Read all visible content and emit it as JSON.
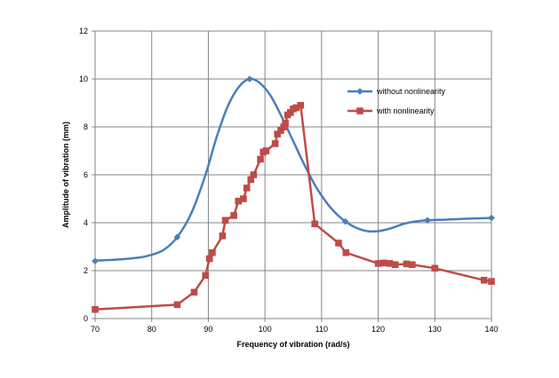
{
  "chart_data": {
    "type": "line",
    "xlabel": "Frequency of vibration (rad/s)",
    "ylabel": "Amplitude of vibration (mm)",
    "xlim": [
      70,
      140
    ],
    "ylim": [
      0,
      12
    ],
    "x_ticks": [
      "70",
      "80",
      "90",
      "100",
      "110",
      "120",
      "130",
      "140"
    ],
    "y_ticks": [
      "0",
      "2",
      "4",
      "6",
      "8",
      "10",
      "12"
    ],
    "grid": true,
    "legend_position": "top-right",
    "series": [
      {
        "name": "without nonlinearity",
        "color": "#4A7EBB",
        "marker": "diamond",
        "smooth": true,
        "points": [
          [
            70,
            2.4
          ],
          [
            84.5,
            3.4
          ],
          [
            97.3,
            10.0
          ],
          [
            114.2,
            4.05
          ],
          [
            128.7,
            4.1
          ],
          [
            140,
            4.2
          ]
        ],
        "curve": [
          [
            70,
            2.42
          ],
          [
            73,
            2.45
          ],
          [
            76,
            2.5
          ],
          [
            79,
            2.6
          ],
          [
            82,
            2.85
          ],
          [
            84.5,
            3.4
          ],
          [
            87,
            4.4
          ],
          [
            89.5,
            6.0
          ],
          [
            91.5,
            7.6
          ],
          [
            93.5,
            8.9
          ],
          [
            95.5,
            9.7
          ],
          [
            97.3,
            10.0
          ],
          [
            99,
            9.85
          ],
          [
            101,
            9.3
          ],
          [
            103,
            8.4
          ],
          [
            105,
            7.4
          ],
          [
            107,
            6.4
          ],
          [
            109,
            5.5
          ],
          [
            111,
            4.8
          ],
          [
            112.5,
            4.4
          ],
          [
            114.2,
            4.05
          ],
          [
            116,
            3.8
          ],
          [
            118,
            3.65
          ],
          [
            120,
            3.65
          ],
          [
            122,
            3.75
          ],
          [
            124.5,
            3.95
          ],
          [
            126.5,
            4.05
          ],
          [
            128.7,
            4.1
          ],
          [
            132,
            4.13
          ],
          [
            136,
            4.17
          ],
          [
            140,
            4.2
          ]
        ]
      },
      {
        "name": "with nonlinearity",
        "color": "#BE4B48",
        "marker": "square",
        "smooth": false,
        "points": [
          [
            70,
            0.38
          ],
          [
            84.5,
            0.58
          ],
          [
            87.5,
            1.1
          ],
          [
            89.5,
            1.8
          ],
          [
            90.2,
            2.5
          ],
          [
            90.7,
            2.75
          ],
          [
            92.5,
            3.45
          ],
          [
            93,
            4.1
          ],
          [
            94.5,
            4.3
          ],
          [
            95.3,
            4.9
          ],
          [
            96.2,
            5.0
          ],
          [
            96.8,
            5.45
          ],
          [
            97.5,
            5.8
          ],
          [
            98,
            6.0
          ],
          [
            99.2,
            6.65
          ],
          [
            99.7,
            6.95
          ],
          [
            100.2,
            7.0
          ],
          [
            101.8,
            7.3
          ],
          [
            102.2,
            7.7
          ],
          [
            102.8,
            7.85
          ],
          [
            103.3,
            8.0
          ],
          [
            103.6,
            8.15
          ],
          [
            104,
            8.5
          ],
          [
            104.5,
            8.6
          ],
          [
            105,
            8.75
          ],
          [
            105.5,
            8.8
          ],
          [
            106.3,
            8.9
          ],
          [
            108.8,
            3.95
          ],
          [
            113,
            3.15
          ],
          [
            114.3,
            2.75
          ],
          [
            120,
            2.3
          ],
          [
            121,
            2.32
          ],
          [
            122,
            2.3
          ],
          [
            123,
            2.25
          ],
          [
            125,
            2.28
          ],
          [
            126,
            2.25
          ],
          [
            130,
            2.1
          ],
          [
            138.7,
            1.6
          ],
          [
            140,
            1.55
          ]
        ]
      }
    ]
  }
}
